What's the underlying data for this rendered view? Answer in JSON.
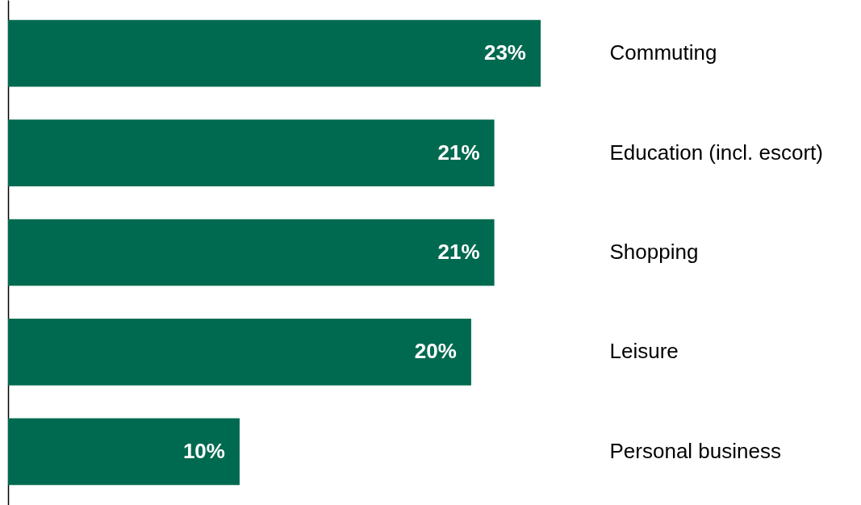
{
  "chart_data": {
    "type": "bar",
    "orientation": "horizontal",
    "categories": [
      "Commuting",
      "Education (incl. escort)",
      "Shopping",
      "Leisure",
      "Personal business"
    ],
    "values": [
      23,
      21,
      21,
      20,
      10
    ],
    "value_labels": [
      "23%",
      "21%",
      "21%",
      "20%",
      "10%"
    ],
    "color": "#006a50"
  }
}
